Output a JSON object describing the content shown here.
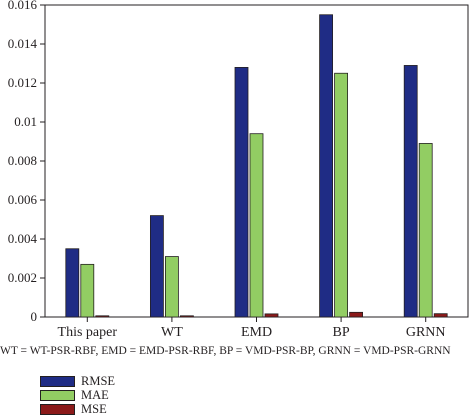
{
  "chart_data": {
    "type": "bar",
    "categories": [
      "This paper",
      "WT",
      "EMD",
      "BP",
      "GRNN"
    ],
    "series": [
      {
        "name": "RMSE",
        "color": "#1f2c85",
        "values": [
          0.0035,
          0.0052,
          0.0128,
          0.0155,
          0.0129
        ]
      },
      {
        "name": "MAE",
        "color": "#92cd63",
        "values": [
          0.0027,
          0.0031,
          0.0094,
          0.0125,
          0.0089
        ]
      },
      {
        "name": "MSE",
        "color": "#8b1a1a",
        "values": [
          1e-05,
          1e-05,
          0.00016,
          0.00024,
          0.00017
        ]
      }
    ],
    "ylim": [
      0,
      0.016
    ],
    "yticks": [
      0,
      0.002,
      0.004,
      0.006,
      0.008,
      0.01,
      0.012,
      0.014,
      0.016
    ],
    "ytick_labels": [
      "0",
      "0.002",
      "0.004",
      "0.006",
      "0.008",
      "0.01",
      "0.012",
      "0.014",
      "0.016"
    ],
    "legend_position": "bottom-left",
    "grid": false
  },
  "footnote": "WT = WT-PSR-RBF, EMD = EMD-PSR-RBF, BP = VMD-PSR-BP, GRNN = VMD-PSR-GRNN"
}
